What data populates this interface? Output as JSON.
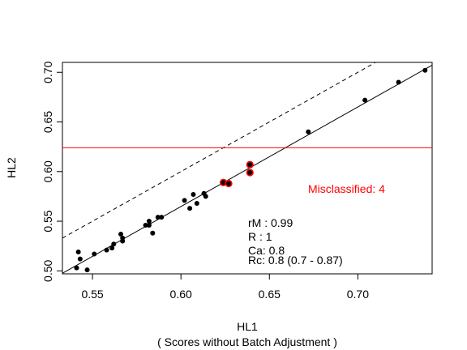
{
  "chart_data": {
    "type": "scatter",
    "xlabel": "HL1",
    "xlabel_sub": "( Scores without Batch Adjustment )",
    "ylabel": "HL2",
    "xlim": [
      0.533,
      0.742
    ],
    "ylim": [
      0.497,
      0.71
    ],
    "xticks": [
      "0.55",
      "0.60",
      "0.65",
      "0.70"
    ],
    "xtick_values": [
      0.55,
      0.6,
      0.65,
      0.7
    ],
    "yticks": [
      "0.50",
      "0.55",
      "0.60",
      "0.65",
      "0.70"
    ],
    "ytick_values": [
      0.5,
      0.55,
      0.6,
      0.65,
      0.7
    ],
    "grid": false,
    "colors": {
      "points": "#000000",
      "misclassified": "#ff0000",
      "threshold": "#ff0000",
      "lines": "#000000"
    },
    "points": [
      {
        "x": 0.541,
        "y": 0.503
      },
      {
        "x": 0.542,
        "y": 0.519
      },
      {
        "x": 0.543,
        "y": 0.512
      },
      {
        "x": 0.547,
        "y": 0.501
      },
      {
        "x": 0.551,
        "y": 0.517
      },
      {
        "x": 0.558,
        "y": 0.521
      },
      {
        "x": 0.561,
        "y": 0.523
      },
      {
        "x": 0.562,
        "y": 0.527
      },
      {
        "x": 0.566,
        "y": 0.537
      },
      {
        "x": 0.567,
        "y": 0.53
      },
      {
        "x": 0.567,
        "y": 0.533
      },
      {
        "x": 0.58,
        "y": 0.546
      },
      {
        "x": 0.582,
        "y": 0.546
      },
      {
        "x": 0.582,
        "y": 0.55
      },
      {
        "x": 0.584,
        "y": 0.538
      },
      {
        "x": 0.587,
        "y": 0.554
      },
      {
        "x": 0.589,
        "y": 0.554
      },
      {
        "x": 0.602,
        "y": 0.571
      },
      {
        "x": 0.605,
        "y": 0.563
      },
      {
        "x": 0.607,
        "y": 0.577
      },
      {
        "x": 0.609,
        "y": 0.568
      },
      {
        "x": 0.613,
        "y": 0.578
      },
      {
        "x": 0.614,
        "y": 0.575
      },
      {
        "x": 0.624,
        "y": 0.589,
        "misclassified": true
      },
      {
        "x": 0.627,
        "y": 0.588,
        "misclassified": true
      },
      {
        "x": 0.639,
        "y": 0.599,
        "misclassified": true
      },
      {
        "x": 0.639,
        "y": 0.607,
        "misclassified": true
      },
      {
        "x": 0.672,
        "y": 0.64
      },
      {
        "x": 0.704,
        "y": 0.672
      },
      {
        "x": 0.723,
        "y": 0.69
      },
      {
        "x": 0.738,
        "y": 0.702
      }
    ],
    "lines": {
      "identity": {
        "slope": 1,
        "intercept": 0,
        "style": "dashed"
      },
      "fit": {
        "slope": 1.003,
        "intercept": -0.037,
        "style": "solid"
      },
      "threshold_y": 0.624
    },
    "annotations": {
      "misclassified": "Misclassified: 4",
      "stats": [
        "rM : 0.99",
        "R : 1",
        "Ca: 0.8",
        "Rc: 0.8 (0.7 - 0.87)"
      ]
    }
  }
}
